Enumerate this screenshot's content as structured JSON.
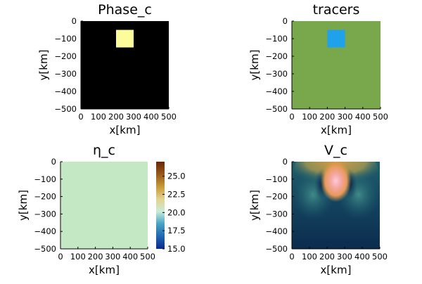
{
  "chart_data": [
    {
      "type": "heatmap",
      "title": "Phase_c",
      "xlabel": "x[km]",
      "ylabel": "y[km]",
      "xlim": [
        0,
        500
      ],
      "ylim": [
        -500,
        0
      ],
      "xticks": [
        "0",
        "100",
        "200",
        "300",
        "400",
        "500"
      ],
      "yticks": [
        "0",
        "−100",
        "−200",
        "−300",
        "−400",
        "−500"
      ],
      "background_color": "#000000",
      "anomaly": {
        "x": [
          200,
          300
        ],
        "y": [
          -150,
          -50
        ],
        "color": "#fcfc9a"
      }
    },
    {
      "type": "heatmap",
      "title": "tracers",
      "xlabel": "x[km]",
      "ylabel": "y[km]",
      "xlim": [
        0,
        500
      ],
      "ylim": [
        -500,
        0
      ],
      "xticks": [
        "0",
        "100",
        "200",
        "300",
        "400",
        "500"
      ],
      "yticks": [
        "0",
        "−100",
        "−200",
        "−300",
        "−400",
        "−500"
      ],
      "background_color": "#79a74b",
      "anomaly": {
        "x": [
          200,
          300
        ],
        "y": [
          -150,
          -50
        ],
        "color": "#1fa1ec"
      }
    },
    {
      "type": "heatmap",
      "title": "η_c",
      "xlabel": "x[km]",
      "ylabel": "y[km]",
      "xlim": [
        0,
        500
      ],
      "ylim": [
        -500,
        0
      ],
      "xticks": [
        "0",
        "100",
        "200",
        "300",
        "400",
        "500"
      ],
      "yticks": [
        "0",
        "−100",
        "−200",
        "−300",
        "−400",
        "−500"
      ],
      "background_color": "#c4e8c4",
      "colorbar": {
        "range": [
          15,
          27
        ],
        "ticks": [
          "15.0",
          "17.5",
          "20.0",
          "22.5",
          "25.0"
        ],
        "tick_values": [
          15,
          17.5,
          20,
          22.5,
          25
        ],
        "colors": [
          "#0a2a8c",
          "#1f66b2",
          "#45a2c4",
          "#c9ecd9",
          "#e3d38f",
          "#c69a36",
          "#97591a",
          "#6b2509"
        ]
      }
    },
    {
      "type": "heatmap",
      "title": "V_c",
      "xlabel": "x[km]",
      "ylabel": "y[km]",
      "xlim": [
        0,
        500
      ],
      "ylim": [
        -500,
        0
      ],
      "xticks": [
        "0",
        "100",
        "200",
        "300",
        "400",
        "500"
      ],
      "yticks": [
        "0",
        "−100",
        "−200",
        "−300",
        "−400",
        "−500"
      ],
      "background_color": "#0d3556"
    }
  ]
}
